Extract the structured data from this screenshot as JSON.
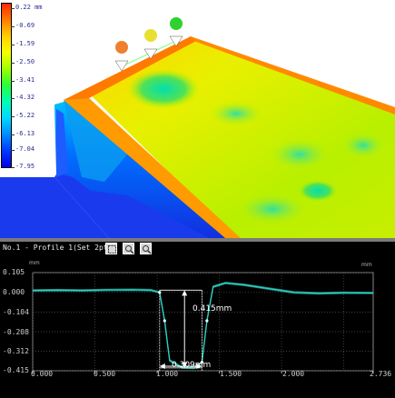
{
  "scale": {
    "labels": [
      "0.22 mm",
      "-0.69",
      "-1.59",
      "-2.50",
      "-3.41",
      "-4.32",
      "-5.22",
      "-6.13",
      "-7.04",
      "-7.95"
    ]
  },
  "markers": [
    {
      "name": "marker-1",
      "color": "#f08030"
    },
    {
      "name": "marker-2",
      "color": "#e8e030"
    },
    {
      "name": "marker-3",
      "color": "#30d030"
    }
  ],
  "profile": {
    "title": "No.1 - Profile 1(Set 2pt.)",
    "unit_y": "mm",
    "unit_x": "mm",
    "y_ticks": [
      "0.105",
      "0.000",
      "-0.104",
      "-0.208",
      "-0.312",
      "-0.415"
    ],
    "x_ticks": [
      "0.000",
      "0.500",
      "1.000",
      "1.500",
      "2.000",
      "2.736"
    ],
    "height_label": "0.415mm",
    "width_label": "0.309mm",
    "line_color": "#2fd0c0"
  },
  "chart_data": {
    "type": "line",
    "x": [
      0.0,
      0.2,
      0.4,
      0.6,
      0.8,
      0.95,
      1.02,
      1.06,
      1.1,
      1.2,
      1.3,
      1.36,
      1.4,
      1.45,
      1.55,
      1.7,
      1.9,
      2.1,
      2.3,
      2.5,
      2.736
    ],
    "series": [
      {
        "values": [
          0.01,
          0.012,
          0.01,
          0.013,
          0.014,
          0.012,
          0.0,
          -0.15,
          -0.36,
          -0.398,
          -0.4,
          -0.37,
          -0.15,
          0.03,
          0.05,
          0.04,
          0.02,
          0.0,
          -0.005,
          -0.002,
          -0.003
        ]
      }
    ],
    "xlim": [
      0.0,
      2.736
    ],
    "ylim": [
      -0.415,
      0.105
    ],
    "grid": true
  }
}
